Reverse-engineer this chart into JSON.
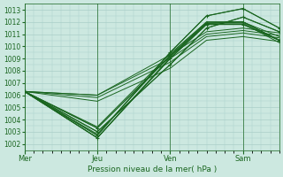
{
  "xlabel": "Pression niveau de la mer( hPa )",
  "x_ticks": [
    "Mer",
    "Jeu",
    "Ven",
    "Sam"
  ],
  "x_tick_pos": [
    0,
    48,
    96,
    144
  ],
  "ylim": [
    1001.5,
    1013.5
  ],
  "yticks": [
    1002,
    1003,
    1004,
    1005,
    1006,
    1007,
    1008,
    1009,
    1010,
    1011,
    1012,
    1013
  ],
  "bg_color": "#cce8e0",
  "grid_color": "#aacfc8",
  "line_color": "#1a6620",
  "xlim": [
    0,
    168
  ],
  "series": [
    [
      [
        0,
        48,
        96,
        120,
        144,
        168
      ],
      [
        1006.3,
        1002.7,
        1009.5,
        1012.5,
        1013.1,
        1011.5
      ]
    ],
    [
      [
        0,
        48,
        96,
        120,
        144,
        168
      ],
      [
        1006.3,
        1003.0,
        1008.5,
        1011.5,
        1012.4,
        1011.2
      ]
    ],
    [
      [
        0,
        48,
        96,
        120,
        144,
        168
      ],
      [
        1006.3,
        1002.5,
        1009.0,
        1011.8,
        1011.8,
        1010.5
      ]
    ],
    [
      [
        0,
        48,
        96,
        120,
        144,
        168
      ],
      [
        1006.3,
        1003.3,
        1009.2,
        1011.9,
        1012.0,
        1010.5
      ]
    ],
    [
      [
        0,
        48,
        96,
        120,
        144,
        168
      ],
      [
        1006.3,
        1003.4,
        1009.4,
        1012.0,
        1012.0,
        1010.8
      ]
    ],
    [
      [
        0,
        48,
        96,
        120,
        144,
        168
      ],
      [
        1006.3,
        1002.8,
        1009.3,
        1012.0,
        1012.0,
        1010.5
      ]
    ],
    [
      [
        0,
        48,
        96,
        120,
        144,
        168
      ],
      [
        1006.3,
        1002.5,
        1009.1,
        1011.9,
        1011.9,
        1010.3
      ]
    ],
    [
      [
        0,
        48,
        96,
        120,
        144,
        168
      ],
      [
        1006.3,
        1006.0,
        1009.3,
        1011.2,
        1011.5,
        1011.1
      ]
    ],
    [
      [
        0,
        48,
        96,
        120,
        144,
        168
      ],
      [
        1006.3,
        1006.0,
        1009.0,
        1011.0,
        1011.3,
        1010.9
      ]
    ],
    [
      [
        0,
        48,
        96,
        120,
        144,
        168
      ],
      [
        1006.3,
        1005.8,
        1008.7,
        1010.8,
        1011.1,
        1010.7
      ]
    ],
    [
      [
        0,
        48,
        96,
        120,
        144,
        168
      ],
      [
        1006.3,
        1005.5,
        1008.2,
        1010.5,
        1010.8,
        1010.4
      ]
    ]
  ],
  "dot_series": [
    [
      [
        0,
        48,
        96,
        120,
        144,
        168
      ],
      [
        1006.3,
        1002.7,
        1009.5,
        1012.5,
        1013.1,
        1011.5
      ]
    ],
    [
      [
        0,
        48,
        96,
        120,
        144,
        168
      ],
      [
        1006.3,
        1003.0,
        1008.5,
        1011.5,
        1012.4,
        1011.2
      ]
    ],
    [
      [
        0,
        48,
        96,
        120,
        144,
        168
      ],
      [
        1006.3,
        1002.5,
        1009.0,
        1011.8,
        1011.8,
        1010.5
      ]
    ],
    [
      [
        0,
        48,
        96,
        120,
        144,
        168
      ],
      [
        1006.3,
        1003.3,
        1009.2,
        1011.9,
        1012.0,
        1010.5
      ]
    ]
  ]
}
